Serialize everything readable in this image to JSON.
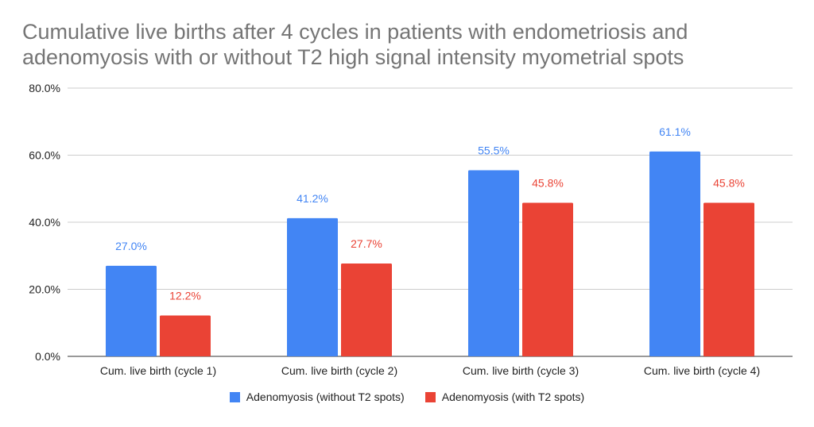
{
  "chart_data": {
    "type": "bar",
    "title_lines": [
      "Cumulative live births after 4 cycles in patients with endometriosis and",
      "adenomyosis with or without T2 high signal intensity myometrial spots"
    ],
    "categories": [
      "Cum. live birth (cycle 1)",
      "Cum. live birth (cycle 2)",
      "Cum. live birth (cycle 3)",
      "Cum. live birth (cycle 4)"
    ],
    "series": [
      {
        "name": "Adenomyosis (without T2 spots)",
        "color": "#4285f4",
        "values": [
          27.0,
          41.2,
          55.5,
          61.1
        ],
        "labels": [
          "27.0%",
          "41.2%",
          "55.5%",
          "61.1%"
        ]
      },
      {
        "name": "Adenomyosis (with T2 spots)",
        "color": "#ea4335",
        "values": [
          12.2,
          27.7,
          45.8,
          45.8
        ],
        "labels": [
          "12.2%",
          "27.7%",
          "45.8%",
          "45.8%"
        ]
      }
    ],
    "ylim": [
      0,
      80
    ],
    "yticks": [
      0,
      20,
      40,
      60,
      80
    ],
    "ytick_labels": [
      "0.0%",
      "20.0%",
      "40.0%",
      "60.0%",
      "80.0%"
    ],
    "grid": true,
    "legend_position": "bottom"
  }
}
